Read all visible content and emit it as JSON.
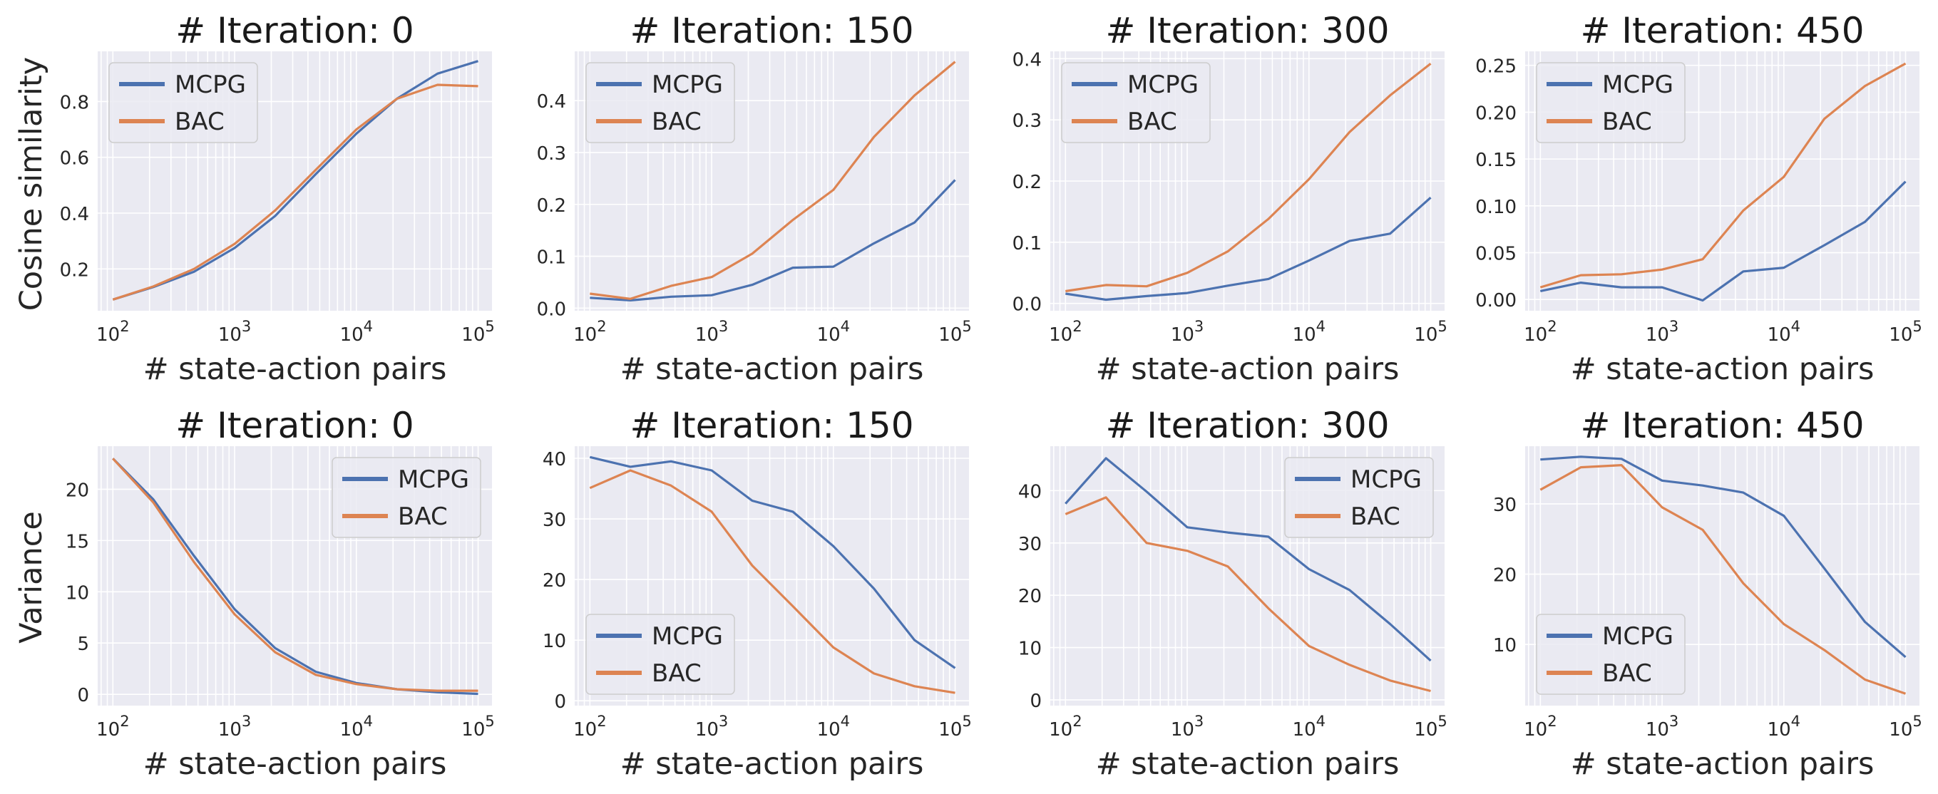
{
  "colors": {
    "MCPG": "#4c72b0",
    "BAC": "#dd8452"
  },
  "row_labels": {
    "top": "Cosine similarity",
    "bottom": "Variance"
  },
  "x_tick_exponents": [
    "2",
    "3",
    "4",
    "5"
  ],
  "x_tick_base": "10",
  "chart_data": [
    {
      "type": "line",
      "title": "# Iteration: 0",
      "xlabel": "# state-action pairs",
      "ylabel": "Cosine similarity",
      "xscale": "log",
      "xlim": [
        75,
        130000
      ],
      "ylim": [
        0.05,
        0.98
      ],
      "yticks": [
        0.2,
        0.4,
        0.6,
        0.8
      ],
      "ytick_labels": [
        "0.2",
        "0.4",
        "0.6",
        "0.8"
      ],
      "legend": "upper-left",
      "x": [
        100,
        215,
        464,
        1000,
        2154,
        4642,
        10000,
        21544,
        46416,
        100000
      ],
      "series": [
        {
          "name": "MCPG",
          "values": [
            0.09,
            0.135,
            0.19,
            0.275,
            0.39,
            0.54,
            0.685,
            0.81,
            0.9,
            0.945
          ]
        },
        {
          "name": "BAC",
          "values": [
            0.09,
            0.137,
            0.2,
            0.29,
            0.41,
            0.555,
            0.7,
            0.81,
            0.86,
            0.855
          ]
        }
      ]
    },
    {
      "type": "line",
      "title": "# Iteration: 150",
      "xlabel": "# state-action pairs",
      "ylabel": "",
      "xscale": "log",
      "xlim": [
        75,
        130000
      ],
      "ylim": [
        -0.005,
        0.495
      ],
      "yticks": [
        0,
        0.1,
        0.2,
        0.3,
        0.4
      ],
      "ytick_labels": [
        "0.0",
        "0.1",
        "0.2",
        "0.3",
        "0.4"
      ],
      "legend": "upper-left",
      "x": [
        100,
        215,
        464,
        1000,
        2154,
        4642,
        10000,
        21544,
        46416,
        100000
      ],
      "series": [
        {
          "name": "MCPG",
          "values": [
            0.02,
            0.015,
            0.022,
            0.025,
            0.045,
            0.078,
            0.08,
            0.125,
            0.165,
            0.247
          ]
        },
        {
          "name": "BAC",
          "values": [
            0.028,
            0.018,
            0.043,
            0.06,
            0.105,
            0.17,
            0.228,
            0.33,
            0.41,
            0.475
          ]
        }
      ]
    },
    {
      "type": "line",
      "title": "# Iteration: 300",
      "xlabel": "# state-action pairs",
      "ylabel": "",
      "xscale": "log",
      "xlim": [
        75,
        130000
      ],
      "ylim": [
        -0.012,
        0.412
      ],
      "yticks": [
        0,
        0.1,
        0.2,
        0.3,
        0.4
      ],
      "ytick_labels": [
        "0.0",
        "0.1",
        "0.2",
        "0.3",
        "0.4"
      ],
      "legend": "upper-left",
      "x": [
        100,
        215,
        464,
        1000,
        2154,
        4642,
        10000,
        21544,
        46416,
        100000
      ],
      "series": [
        {
          "name": "MCPG",
          "values": [
            0.016,
            0.006,
            0.012,
            0.017,
            0.029,
            0.04,
            0.07,
            0.102,
            0.114,
            0.173
          ]
        },
        {
          "name": "BAC",
          "values": [
            0.02,
            0.03,
            0.028,
            0.05,
            0.085,
            0.138,
            0.203,
            0.28,
            0.34,
            0.392
          ]
        }
      ]
    },
    {
      "type": "line",
      "title": "# Iteration: 450",
      "xlabel": "# state-action pairs",
      "ylabel": "",
      "xscale": "log",
      "xlim": [
        75,
        130000
      ],
      "ylim": [
        -0.012,
        0.265
      ],
      "yticks": [
        0,
        0.05,
        0.1,
        0.15,
        0.2,
        0.25
      ],
      "ytick_labels": [
        "0.00",
        "0.05",
        "0.10",
        "0.15",
        "0.20",
        "0.25"
      ],
      "legend": "upper-left",
      "x": [
        100,
        215,
        464,
        1000,
        2154,
        4642,
        10000,
        21544,
        46416,
        100000
      ],
      "series": [
        {
          "name": "MCPG",
          "values": [
            0.009,
            0.018,
            0.013,
            0.013,
            -0.001,
            0.03,
            0.034,
            0.058,
            0.083,
            0.126
          ]
        },
        {
          "name": "BAC",
          "values": [
            0.013,
            0.026,
            0.027,
            0.032,
            0.043,
            0.095,
            0.131,
            0.193,
            0.228,
            0.252
          ]
        }
      ]
    },
    {
      "type": "line",
      "title": "# Iteration: 0",
      "xlabel": "# state-action pairs",
      "ylabel": "Variance",
      "xscale": "log",
      "xlim": [
        75,
        130000
      ],
      "ylim": [
        -1.1,
        24.2
      ],
      "yticks": [
        0,
        5,
        10,
        15,
        20
      ],
      "ytick_labels": [
        "0",
        "5",
        "10",
        "15",
        "20"
      ],
      "legend": "upper-right",
      "x": [
        100,
        215,
        464,
        1000,
        2154,
        4642,
        10000,
        21544,
        46416,
        100000
      ],
      "series": [
        {
          "name": "MCPG",
          "values": [
            23.0,
            19.0,
            13.5,
            8.3,
            4.5,
            2.2,
            1.1,
            0.5,
            0.2,
            0.05
          ]
        },
        {
          "name": "BAC",
          "values": [
            23.0,
            18.7,
            12.9,
            7.8,
            4.1,
            1.9,
            1.0,
            0.5,
            0.35,
            0.35
          ]
        }
      ]
    },
    {
      "type": "line",
      "title": "# Iteration: 150",
      "xlabel": "# state-action pairs",
      "ylabel": "",
      "xscale": "log",
      "xlim": [
        75,
        130000
      ],
      "ylim": [
        -0.8,
        42
      ],
      "yticks": [
        0,
        10,
        20,
        30,
        40
      ],
      "ytick_labels": [
        "0",
        "10",
        "20",
        "30",
        "40"
      ],
      "legend": "lower-left",
      "x": [
        100,
        215,
        464,
        1000,
        2154,
        4642,
        10000,
        21544,
        46416,
        100000
      ],
      "series": [
        {
          "name": "MCPG",
          "values": [
            40.2,
            38.6,
            39.5,
            38.0,
            33.0,
            31.2,
            25.5,
            18.5,
            10.0,
            5.4
          ]
        },
        {
          "name": "BAC",
          "values": [
            35.1,
            38.0,
            35.5,
            31.2,
            22.3,
            15.6,
            8.8,
            4.5,
            2.4,
            1.3
          ]
        }
      ]
    },
    {
      "type": "line",
      "title": "# Iteration: 300",
      "xlabel": "# state-action pairs",
      "ylabel": "",
      "xscale": "log",
      "xlim": [
        75,
        130000
      ],
      "ylim": [
        -1.1,
        48.5
      ],
      "yticks": [
        0,
        10,
        20,
        30,
        40
      ],
      "ytick_labels": [
        "0",
        "10",
        "20",
        "30",
        "40"
      ],
      "legend": "upper-right",
      "x": [
        100,
        215,
        464,
        1000,
        2154,
        4642,
        10000,
        21544,
        46416,
        100000
      ],
      "series": [
        {
          "name": "MCPG",
          "values": [
            37.5,
            46.2,
            39.8,
            33.0,
            32.0,
            31.2,
            25.0,
            21.0,
            14.5,
            7.5
          ]
        },
        {
          "name": "BAC",
          "values": [
            35.5,
            38.7,
            30.0,
            28.5,
            25.5,
            17.5,
            10.3,
            6.7,
            3.7,
            1.7
          ]
        }
      ]
    },
    {
      "type": "line",
      "title": "# Iteration: 450",
      "xlabel": "# state-action pairs",
      "ylabel": "",
      "xscale": "log",
      "xlim": [
        75,
        130000
      ],
      "ylim": [
        1.3,
        38.2
      ],
      "yticks": [
        10,
        20,
        30
      ],
      "ytick_labels": [
        "10",
        "20",
        "30"
      ],
      "legend": "lower-left",
      "x": [
        100,
        215,
        464,
        1000,
        2154,
        4642,
        10000,
        21544,
        46416,
        100000
      ],
      "series": [
        {
          "name": "MCPG",
          "values": [
            36.3,
            36.7,
            36.4,
            33.3,
            32.6,
            31.6,
            28.3,
            20.8,
            13.2,
            8.2
          ]
        },
        {
          "name": "BAC",
          "values": [
            32.0,
            35.2,
            35.5,
            29.5,
            26.3,
            18.7,
            12.9,
            9.2,
            5.0,
            3.0
          ]
        }
      ]
    }
  ]
}
